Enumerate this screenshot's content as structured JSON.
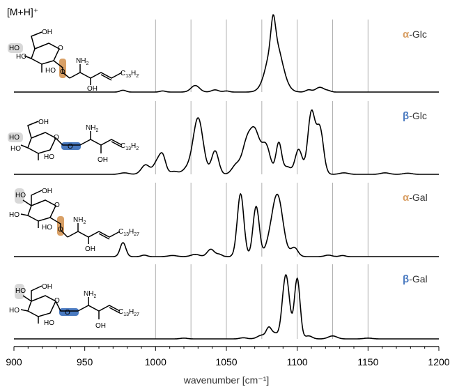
{
  "chart_data": {
    "type": "line",
    "title": "",
    "header_label": "[M+H]⁺",
    "xlabel": "wavenumber [cm⁻¹]",
    "xlim": [
      900,
      1200
    ],
    "xticks": [
      900,
      950,
      1000,
      1050,
      1100,
      1150,
      1200
    ],
    "reference_lines": [
      1000,
      1025,
      1050,
      1075,
      1100,
      1125,
      1150
    ],
    "colors": {
      "alpha": "#D9A066",
      "beta": "#4A7AC0",
      "trace": "#000000",
      "gridline": "#b0b0b0"
    },
    "series": [
      {
        "name": "α-Glc",
        "greek": "α",
        "sugar": "Glc",
        "anomer": "alpha",
        "peaks": [
          [
            977,
            0.025,
            2
          ],
          [
            1005,
            0.015,
            2
          ],
          [
            1028,
            0.09,
            3
          ],
          [
            1042,
            0.03,
            2.5
          ],
          [
            1050,
            0.015,
            2
          ],
          [
            1083,
            0.36,
            1.5
          ],
          [
            1084,
            0.72,
            5.2
          ],
          [
            1108,
            0.03,
            2
          ],
          [
            1116,
            0.065,
            3
          ],
          [
            1122,
            0.015,
            2
          ]
        ]
      },
      {
        "name": "β-Glc",
        "greek": "β",
        "sugar": "Glc",
        "anomer": "beta",
        "peaks": [
          [
            978,
            0.02,
            3
          ],
          [
            993,
            0.13,
            3
          ],
          [
            1001,
            0.16,
            2.5
          ],
          [
            1005,
            0.24,
            2.2
          ],
          [
            1013,
            0.04,
            3
          ],
          [
            1022,
            0.07,
            3
          ],
          [
            1030,
            0.77,
            3.5
          ],
          [
            1042,
            0.32,
            2.5
          ],
          [
            1057,
            0.13,
            3
          ],
          [
            1064,
            0.36,
            3
          ],
          [
            1070,
            0.58,
            3.5
          ],
          [
            1078,
            0.38,
            3
          ],
          [
            1087,
            0.43,
            2
          ],
          [
            1093,
            0.1,
            2.5
          ],
          [
            1101,
            0.34,
            2.5
          ],
          [
            1110,
            0.84,
            2.5
          ],
          [
            1116,
            0.62,
            2.5
          ],
          [
            1133,
            0.02,
            3
          ],
          [
            1162,
            0.02,
            3
          ],
          [
            1178,
            0.015,
            3
          ]
        ]
      },
      {
        "name": "α-Gal",
        "greek": "α",
        "sugar": "Gal",
        "anomer": "alpha",
        "peaks": [
          [
            977,
            0.19,
            2
          ],
          [
            992,
            0.02,
            2
          ],
          [
            1012,
            0.015,
            3
          ],
          [
            1028,
            0.03,
            3
          ],
          [
            1039,
            0.1,
            2.5
          ],
          [
            1045,
            0.03,
            2
          ],
          [
            1060,
            0.85,
            2.3
          ],
          [
            1071,
            0.68,
            2.2
          ],
          [
            1080,
            0.1,
            3
          ],
          [
            1086,
            0.83,
            3.8
          ],
          [
            1098,
            0.12,
            2.5
          ],
          [
            1122,
            0.02,
            2.5
          ],
          [
            1132,
            0.015,
            2
          ]
        ]
      },
      {
        "name": "β-Gal",
        "greek": "β",
        "sugar": "Gal",
        "anomer": "beta",
        "peaks": [
          [
            1020,
            0.01,
            2.5
          ],
          [
            1062,
            0.015,
            2.5
          ],
          [
            1075,
            0.05,
            3
          ],
          [
            1080,
            0.14,
            1.8
          ],
          [
            1084,
            0.07,
            2
          ],
          [
            1092,
            0.86,
            2.5
          ],
          [
            1100,
            0.81,
            2.0
          ],
          [
            1108,
            0.04,
            2.5
          ],
          [
            1125,
            0.04,
            3
          ],
          [
            1150,
            0.01,
            3
          ]
        ]
      }
    ]
  },
  "molecule_labels": {
    "ho": "HO",
    "oh": "OH",
    "o": "O",
    "nh": "NH",
    "nh_sub": "2",
    "chain_c": "C",
    "chain_c_sub": "13",
    "chain_h": "H",
    "chain_h_sub": "27"
  }
}
